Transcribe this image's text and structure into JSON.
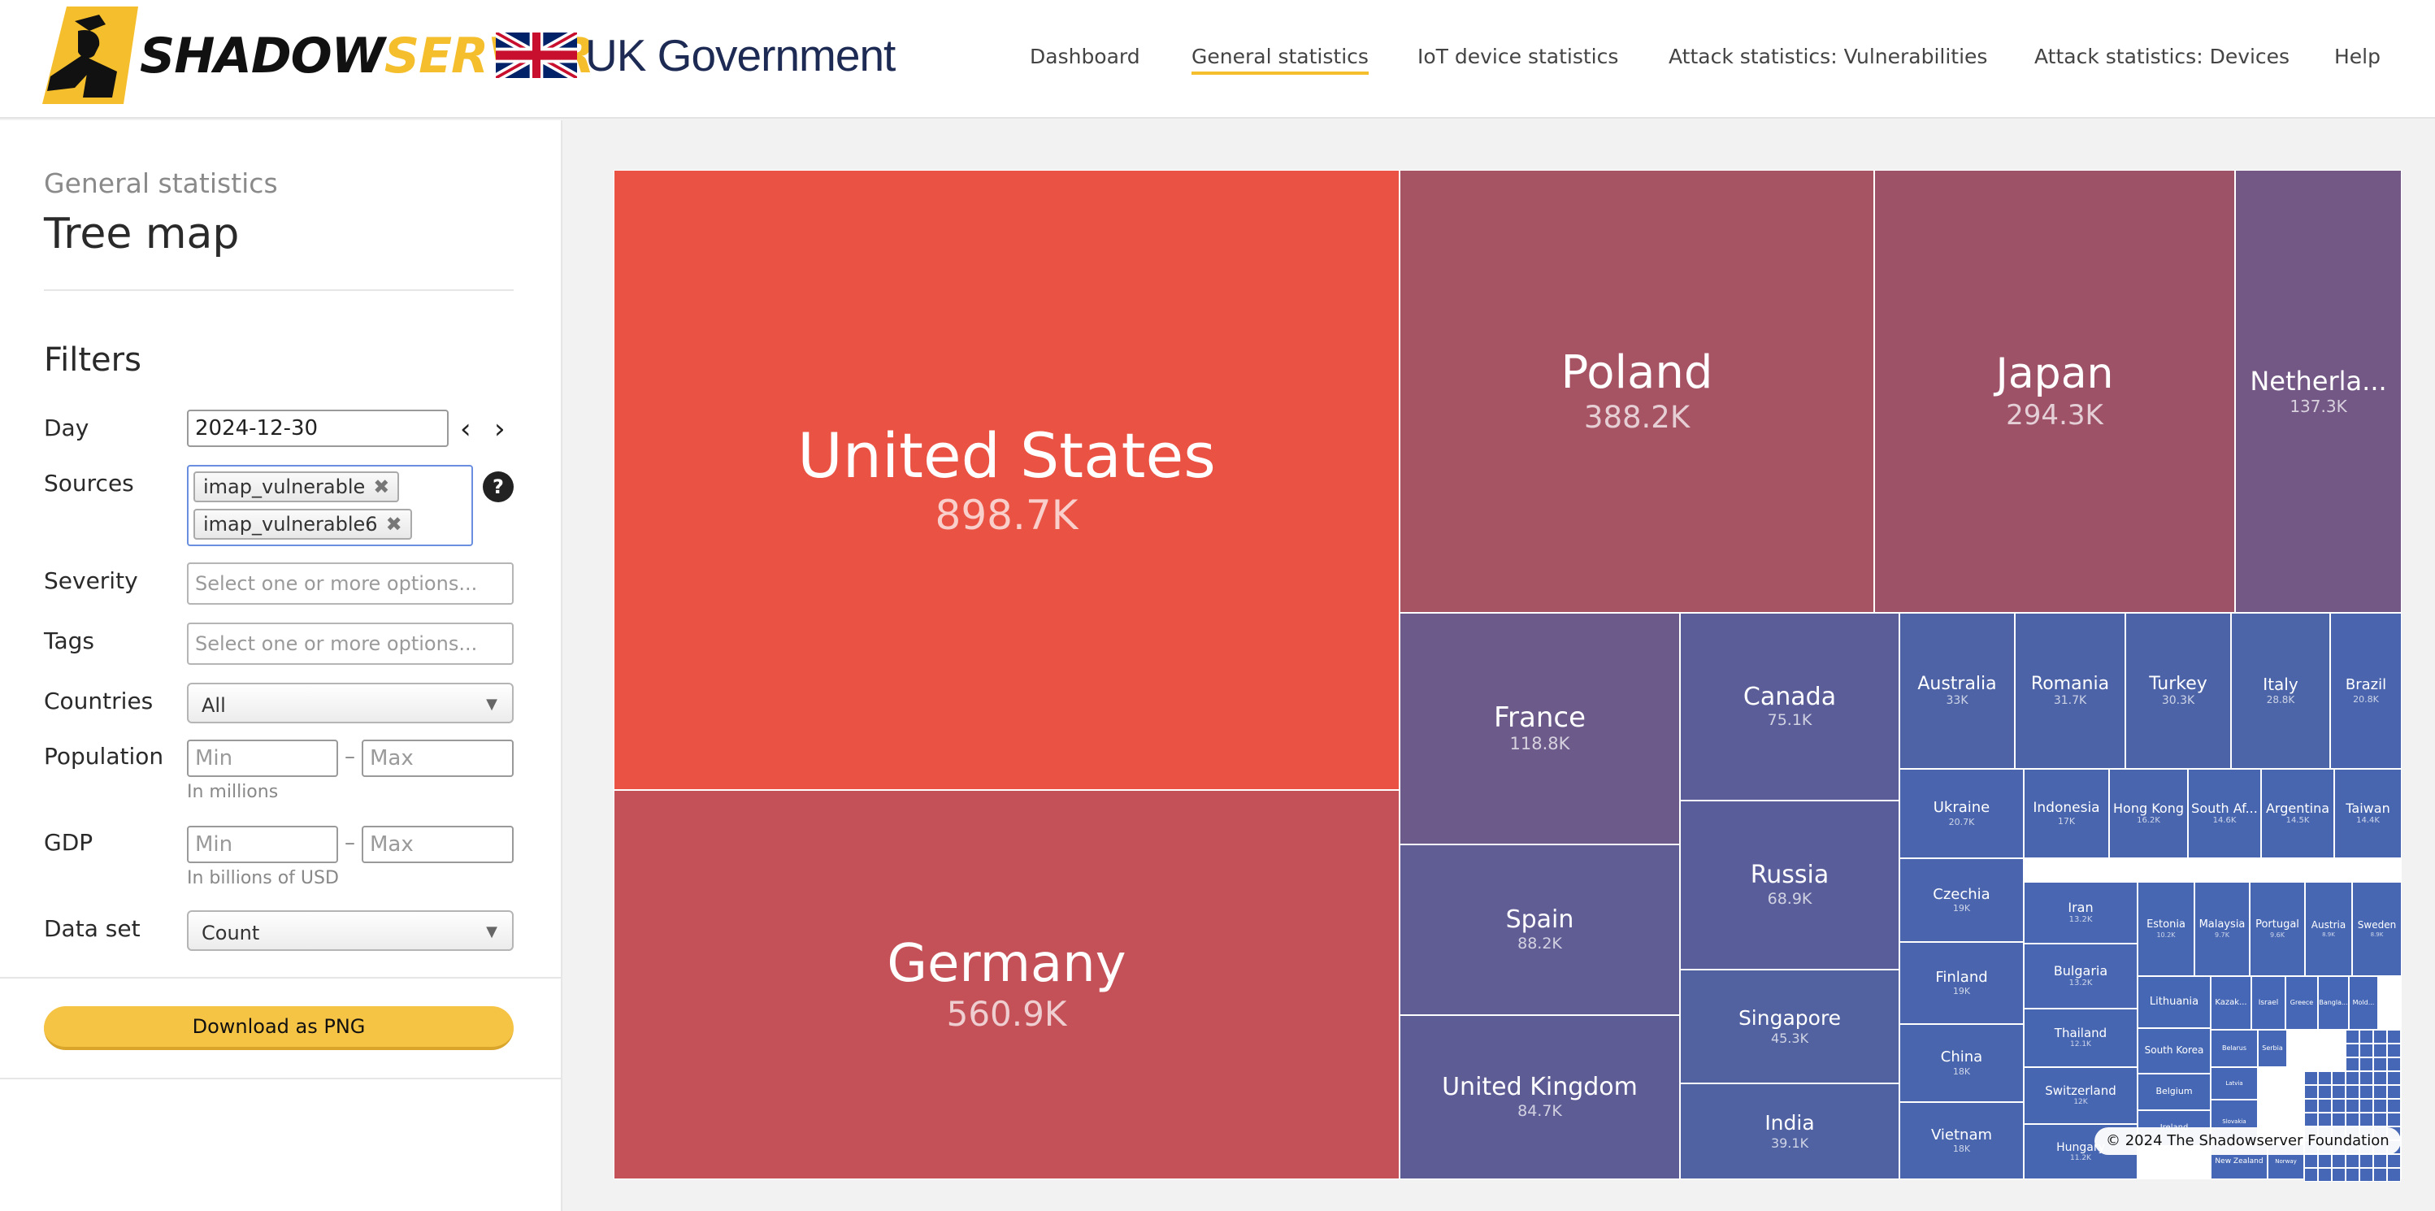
{
  "header": {
    "logo_shadow": "SHADOW",
    "logo_server": "SERVER",
    "partner": "UK Government"
  },
  "nav": {
    "items": [
      {
        "label": "Dashboard"
      },
      {
        "label": "General statistics",
        "active": true
      },
      {
        "label": "IoT device statistics"
      },
      {
        "label": "Attack statistics: Vulnerabilities"
      },
      {
        "label": "Attack statistics: Devices"
      },
      {
        "label": "Help"
      }
    ]
  },
  "sidebar": {
    "subtitle": "General statistics",
    "title": "Tree map",
    "filters_heading": "Filters",
    "day": {
      "label": "Day",
      "value": "2024-12-30"
    },
    "sources": {
      "label": "Sources",
      "chips": [
        "imap_vulnerable",
        "imap_vulnerable6"
      ]
    },
    "severity": {
      "label": "Severity",
      "placeholder": "Select one or more options..."
    },
    "tags": {
      "label": "Tags",
      "placeholder": "Select one or more options..."
    },
    "countries": {
      "label": "Countries",
      "value": "All"
    },
    "population": {
      "label": "Population",
      "min_placeholder": "Min",
      "max_placeholder": "Max",
      "hint": "In millions"
    },
    "gdp": {
      "label": "GDP",
      "min_placeholder": "Min",
      "max_placeholder": "Max",
      "hint": "In billions of USD"
    },
    "dataset": {
      "label": "Data set",
      "value": "Count"
    },
    "download_label": "Download as PNG"
  },
  "chart_data": {
    "type": "treemap",
    "title": "",
    "unit": "count",
    "colors": {
      "high": "#ea5344",
      "low": "#4a66b5"
    },
    "nodes": [
      {
        "name": "United States",
        "label": "898.7K",
        "value": 898700,
        "color": "#ea5344"
      },
      {
        "name": "Germany",
        "label": "560.9K",
        "value": 560900,
        "color": "#c45157"
      },
      {
        "name": "Poland",
        "label": "388.2K",
        "value": 388200,
        "color": "#a65364"
      },
      {
        "name": "Japan",
        "label": "294.3K",
        "value": 294300,
        "color": "#9d5268"
      },
      {
        "name": "Netherla...",
        "label": "137.3K",
        "value": 137300,
        "color": "#735886"
      },
      {
        "name": "France",
        "label": "118.8K",
        "value": 118800,
        "color": "#6c5a8a"
      },
      {
        "name": "Spain",
        "label": "88.2K",
        "value": 88200,
        "color": "#605c94"
      },
      {
        "name": "United Kingdom",
        "label": "84.7K",
        "value": 84700,
        "color": "#5e5c95"
      },
      {
        "name": "Canada",
        "label": "75.1K",
        "value": 75100,
        "color": "#5b5d98"
      },
      {
        "name": "Russia",
        "label": "68.9K",
        "value": 68900,
        "color": "#595e9a"
      },
      {
        "name": "Singapore",
        "label": "45.3K",
        "value": 45300,
        "color": "#52619f"
      },
      {
        "name": "India",
        "label": "39.1K",
        "value": 39100,
        "color": "#5062a2"
      },
      {
        "name": "Australia",
        "label": "33K",
        "value": 33000,
        "color": "#4e63a6"
      },
      {
        "name": "Romania",
        "label": "31.7K",
        "value": 31700,
        "color": "#4d63a7"
      },
      {
        "name": "Turkey",
        "label": "30.3K",
        "value": 30300,
        "color": "#4d63a7"
      },
      {
        "name": "Italy",
        "label": "28.8K",
        "value": 28800,
        "color": "#4c64a8"
      },
      {
        "name": "Brazil",
        "label": "20.8K",
        "value": 20800,
        "color": "#4a65ad"
      },
      {
        "name": "Ukraine",
        "label": "20.7K",
        "value": 20700,
        "color": "#4a65ad"
      },
      {
        "name": "Indonesia",
        "label": "17K",
        "value": 17000,
        "color": "#4965ae"
      },
      {
        "name": "Hong Kong",
        "label": "16.2K",
        "value": 16200,
        "color": "#4965ae"
      },
      {
        "name": "South Af...",
        "label": "14.6K",
        "value": 14600,
        "color": "#4866b0"
      },
      {
        "name": "Argentina",
        "label": "14.5K",
        "value": 14500,
        "color": "#4866b0"
      },
      {
        "name": "Taiwan",
        "label": "14.4K",
        "value": 14400,
        "color": "#4866b0"
      },
      {
        "name": "Czechia",
        "label": "19K",
        "value": 19000,
        "color": "#4a65ad"
      },
      {
        "name": "Finland",
        "label": "19K",
        "value": 19000,
        "color": "#4a65ad"
      },
      {
        "name": "China",
        "label": "18K",
        "value": 18000,
        "color": "#4965ae"
      },
      {
        "name": "Vietnam",
        "label": "18K",
        "value": 18000,
        "color": "#4965ae"
      },
      {
        "name": "Iran",
        "label": "13.2K",
        "value": 13200,
        "color": "#4866b1"
      },
      {
        "name": "Bulgaria",
        "label": "13.2K",
        "value": 13200,
        "color": "#4866b1"
      },
      {
        "name": "Thailand",
        "label": "12.1K",
        "value": 12100,
        "color": "#4766b2"
      },
      {
        "name": "Switzerland",
        "label": "12K",
        "value": 12000,
        "color": "#4766b2"
      },
      {
        "name": "Hungary",
        "label": "11.2K",
        "value": 11200,
        "color": "#4766b2"
      },
      {
        "name": "Estonia",
        "label": "10.2K",
        "value": 10200,
        "color": "#4767b3"
      },
      {
        "name": "Malaysia",
        "label": "9.7K",
        "value": 9700,
        "color": "#4767b3"
      },
      {
        "name": "Portugal",
        "label": "9.6K",
        "value": 9600,
        "color": "#4767b3"
      },
      {
        "name": "Austria",
        "label": "8.9K",
        "value": 8900,
        "color": "#4767b3"
      },
      {
        "name": "Sweden",
        "label": "8.9K",
        "value": 8900,
        "color": "#4767b3"
      },
      {
        "name": "Lithuania",
        "label": "",
        "value": 8000,
        "color": "#4667b4"
      },
      {
        "name": "South Korea",
        "label": "",
        "value": 7500,
        "color": "#4667b4"
      },
      {
        "name": "Belgium",
        "label": "",
        "value": 6000,
        "color": "#4667b4"
      },
      {
        "name": "Ireland",
        "label": "",
        "value": 4000,
        "color": "#4667b5"
      },
      {
        "name": "New Zealand",
        "label": "",
        "value": 3500,
        "color": "#4667b5"
      },
      {
        "name": "Kazak...",
        "label": "",
        "value": 3000,
        "color": "#4667b5"
      },
      {
        "name": "Israel",
        "label": "",
        "value": 2800,
        "color": "#4667b5"
      },
      {
        "name": "Greece",
        "label": "",
        "value": 2600,
        "color": "#4667b5"
      },
      {
        "name": "Bangla...",
        "label": "",
        "value": 2400,
        "color": "#4667b5"
      },
      {
        "name": "Mold...",
        "label": "",
        "value": 2200,
        "color": "#4667b5"
      },
      {
        "name": "Belarus",
        "label": "",
        "value": 2000,
        "color": "#4667b5"
      },
      {
        "name": "Serbia",
        "label": "",
        "value": 1900,
        "color": "#4667b5"
      },
      {
        "name": "Latvia",
        "label": "",
        "value": 1800,
        "color": "#4667b5"
      },
      {
        "name": "Slovakia",
        "label": "",
        "value": 1700,
        "color": "#4667b5"
      },
      {
        "name": "Norway",
        "label": "",
        "value": 1600,
        "color": "#4667b5"
      }
    ]
  },
  "footer": {
    "copyright": "© 2024 The Shadowserver Foundation"
  }
}
